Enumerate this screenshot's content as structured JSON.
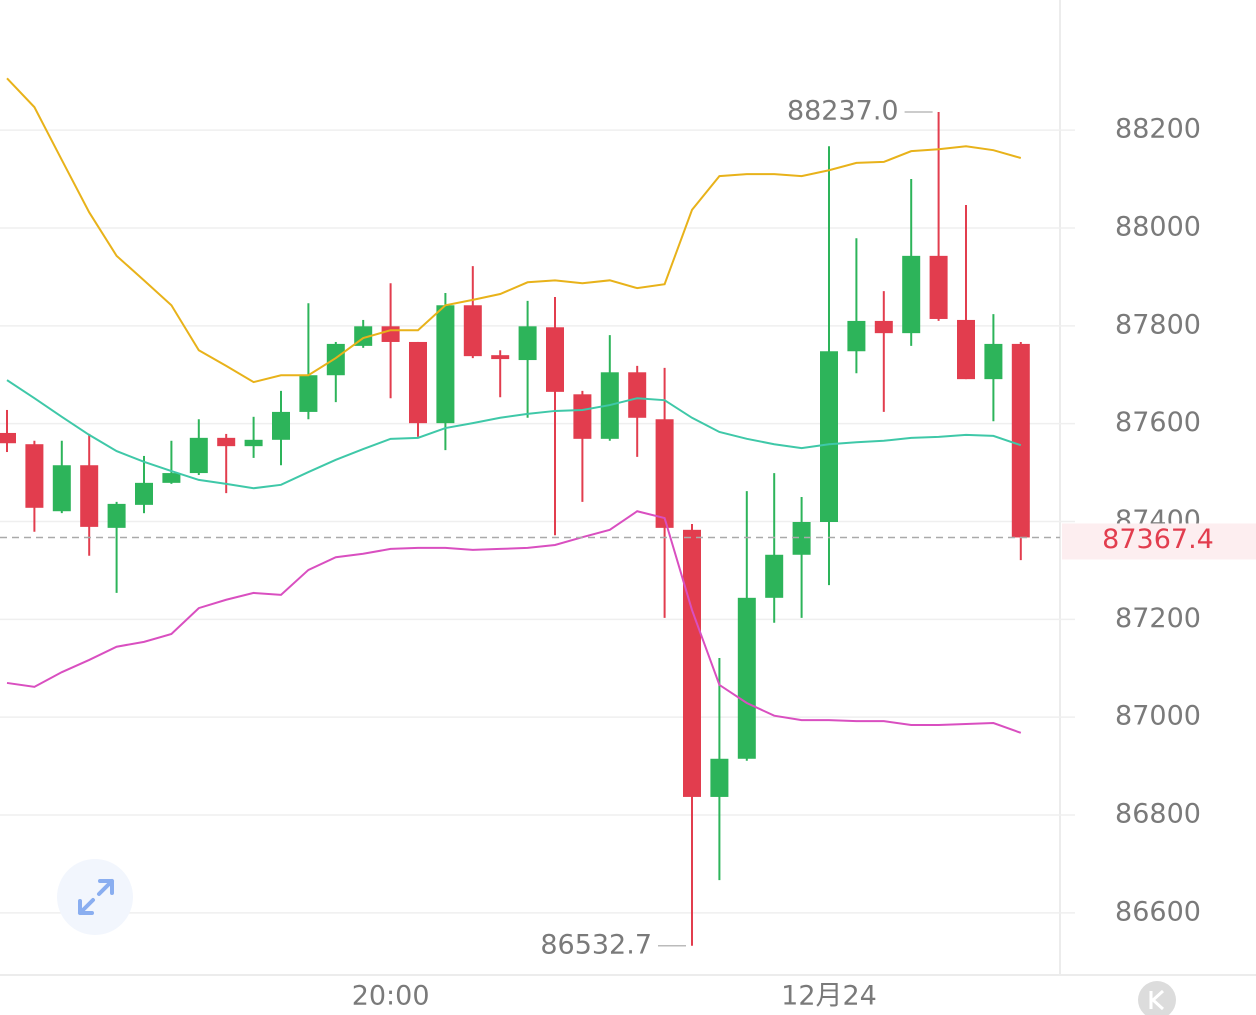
{
  "chart_data": {
    "type": "candlestick",
    "categories": [
      null,
      null,
      null,
      null,
      null,
      null,
      null,
      null,
      null,
      null,
      null,
      null,
      null,
      null,
      "20:00",
      null,
      null,
      null,
      null,
      null,
      null,
      null,
      null,
      null,
      null,
      null,
      null,
      null,
      null,
      null,
      "12月24",
      null,
      null,
      null,
      null,
      null,
      null,
      null
    ],
    "open": [
      87581,
      87558,
      87421,
      87515,
      87387,
      87434,
      87479,
      87499,
      87571,
      87554,
      87567,
      87624,
      87699,
      87759,
      87799,
      87767,
      87601,
      87842,
      87740,
      87730,
      87797,
      87660,
      87569,
      87705,
      87609,
      87383,
      86837,
      86915,
      87244,
      87332,
      87399,
      87748,
      87810,
      87785,
      87943,
      87812,
      87691,
      87763
    ],
    "high": [
      87628,
      87565,
      87565,
      87579,
      87440,
      87534,
      87565,
      87609,
      87579,
      87614,
      87667,
      87846,
      87767,
      87812,
      87887,
      87767,
      87867,
      87922,
      87750,
      87851,
      87859,
      87667,
      87781,
      87718,
      87714,
      87395,
      87121,
      87462,
      87499,
      87450,
      88167,
      87979,
      87871,
      88100,
      88237.0,
      88047,
      87824,
      87767
    ],
    "low": [
      87542,
      87379,
      87417,
      87330,
      87254,
      87417,
      87477,
      87495,
      87458,
      87530,
      87515,
      87609,
      87644,
      87755,
      87652,
      87573,
      87546,
      87734,
      87654,
      87612,
      87372,
      87440,
      87565,
      87532,
      87203,
      86532.7,
      86667,
      86911,
      87193,
      87203,
      87270,
      87703,
      87624,
      87759,
      87810,
      87691,
      87605,
      87321
    ],
    "close": [
      87560,
      87428,
      87515,
      87389,
      87436,
      87479,
      87499,
      87571,
      87554,
      87567,
      87624,
      87699,
      87763,
      87799,
      87767,
      87601,
      87842,
      87738,
      87732,
      87799,
      87665,
      87569,
      87705,
      87612,
      87387,
      86837,
      86915,
      87244,
      87332,
      87399,
      87748,
      87810,
      87785,
      87943,
      87814,
      87691,
      87763,
      87367.4
    ],
    "up_color": "#2db45a",
    "down_color": "#e23d4e",
    "bands": [
      {
        "color": "#e8b21a",
        "values": [
          88306,
          88247,
          88139,
          88032,
          87943,
          87893,
          87842,
          87750,
          87718,
          87685,
          87699,
          87699,
          87734,
          87775,
          87791,
          87791,
          87842,
          87853,
          87865,
          87889,
          87893,
          87887,
          87893,
          87877,
          87885,
          88037,
          88106,
          88110,
          88110,
          88106,
          88118,
          88133,
          88135,
          88157,
          88161,
          88167,
          88159,
          88143
        ]
      },
      {
        "color": "#3fc8a8",
        "values": [
          87689,
          87652,
          87614,
          87577,
          87544,
          87522,
          87503,
          87485,
          87477,
          87468,
          87475,
          87501,
          87526,
          87548,
          87569,
          87571,
          87591,
          87601,
          87612,
          87620,
          87626,
          87628,
          87638,
          87652,
          87648,
          87612,
          87583,
          87569,
          87558,
          87550,
          87558,
          87562,
          87565,
          87571,
          87573,
          87577,
          87575,
          87556
        ]
      },
      {
        "color": "#d94fc0",
        "values": [
          87070,
          87062,
          87092,
          87117,
          87144,
          87154,
          87170,
          87223,
          87240,
          87254,
          87250,
          87301,
          87327,
          87334,
          87344,
          87346,
          87346,
          87342,
          87344,
          87346,
          87352,
          87368,
          87383,
          87421,
          87407,
          87219,
          87066,
          87029,
          87003,
          86994,
          86994,
          86992,
          86992,
          86984,
          86984,
          86986,
          86988,
          86968
        ]
      }
    ],
    "ylim": [
      86473,
      88466
    ],
    "yticks": [
      86600,
      86800,
      87000,
      87200,
      87400,
      87600,
      87800,
      88000,
      88200
    ],
    "grid": true,
    "max_label": {
      "value": 88237.0,
      "label": "88237.0"
    },
    "min_label": {
      "value": 86532.7,
      "label": "86532.7"
    },
    "last_price": {
      "value": 87367.4,
      "label": "87367.4",
      "color": "#e23d4e"
    }
  }
}
